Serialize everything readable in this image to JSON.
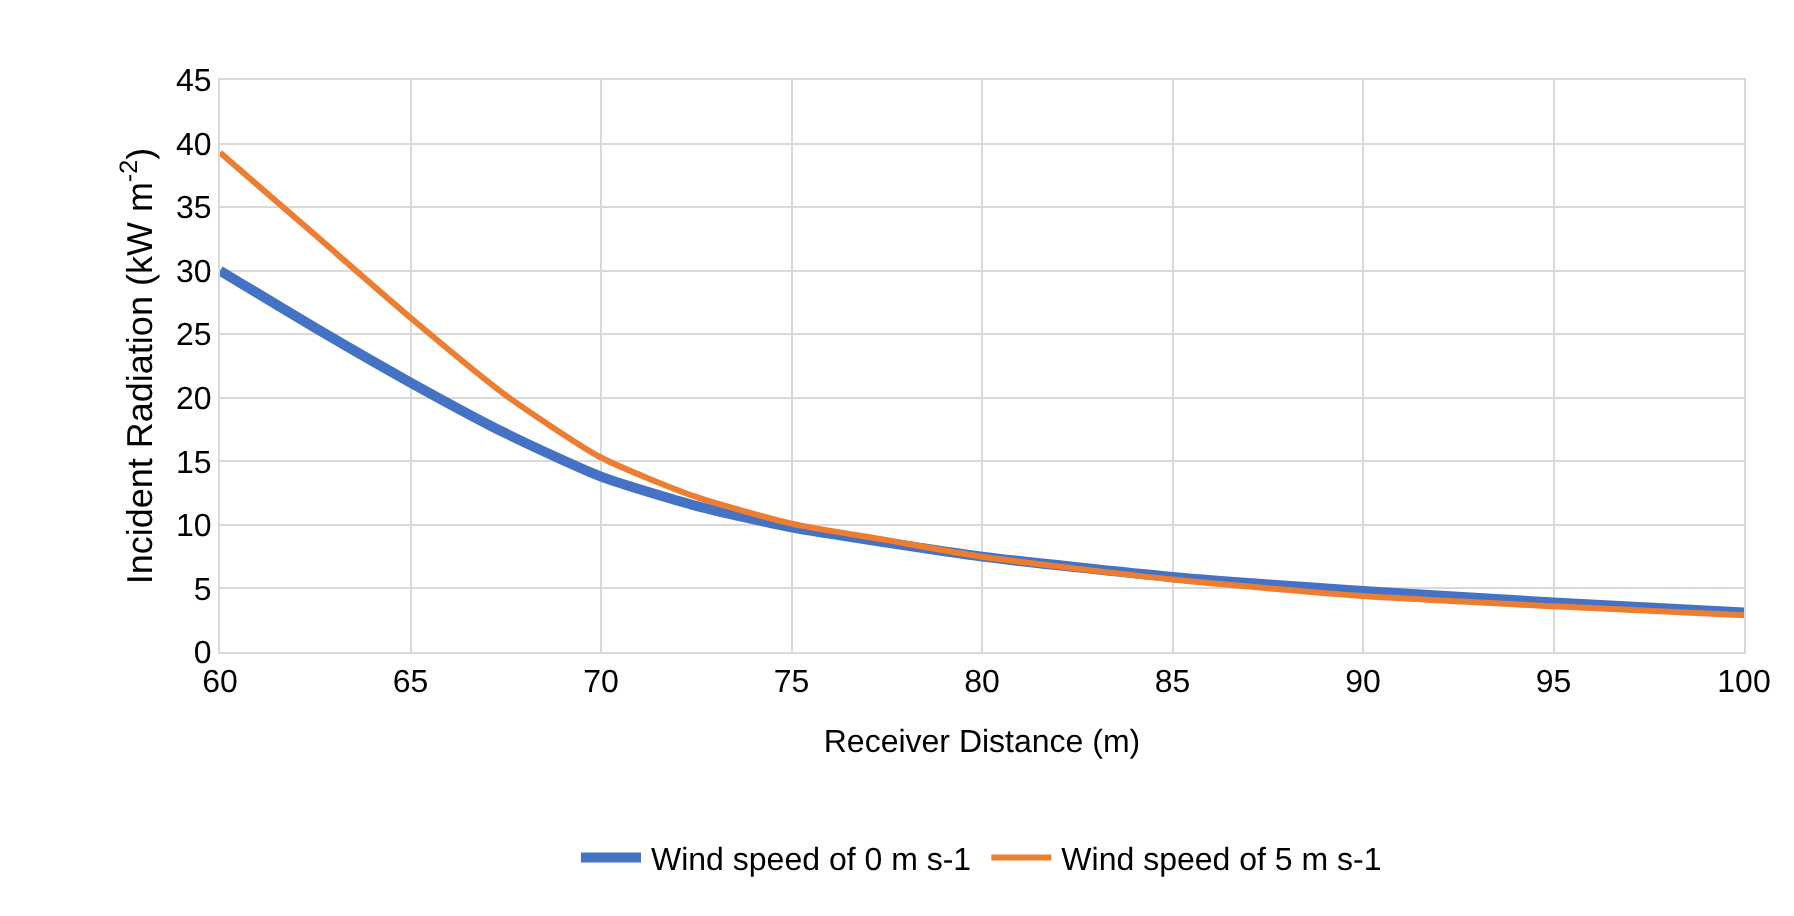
{
  "chart_data": {
    "type": "line",
    "xlabel": "Receiver Distance (m)",
    "ylabel": "Incident Radiation (kW m$^{-2}$)",
    "x": [
      60,
      62.5,
      65,
      67.5,
      70,
      72.5,
      75,
      77.5,
      80,
      85,
      90,
      95,
      100
    ],
    "series": [
      {
        "name": "Wind speed of 0 m s-1",
        "color": "#4472c4",
        "values": [
          30,
          25.5,
          21.2,
          17.2,
          13.8,
          11.5,
          9.8,
          8.6,
          7.5,
          5.9,
          4.8,
          3.9,
          3.1
        ]
      },
      {
        "name": "Wind speed of 5 m s-1",
        "color": "#ed7d31",
        "values": [
          39.3,
          32.8,
          26.3,
          20.2,
          15.3,
          12.2,
          10.1,
          8.8,
          7.5,
          5.7,
          4.4,
          3.6,
          2.9
        ]
      }
    ],
    "xlim": [
      60,
      100
    ],
    "xticks": [
      60,
      65,
      70,
      75,
      80,
      85,
      90,
      95,
      100
    ],
    "ylim": [
      0,
      45
    ],
    "yticks": [
      0,
      5,
      10,
      15,
      20,
      25,
      30,
      35,
      40,
      45
    ],
    "grid": true,
    "legend": "bottom",
    "marker": "none",
    "line_style": "solid"
  }
}
